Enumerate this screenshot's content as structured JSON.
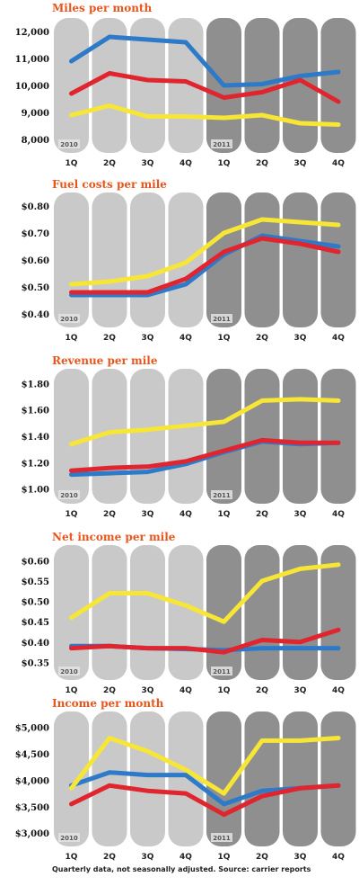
{
  "footnote": "Quarterly data, not seasonally adjusted. Source: carrier reports",
  "colors": {
    "panel_light": "#c9c9c9",
    "panel_dark": "#8f8f8f",
    "title": "#e8561d",
    "blue": "#2d7ac9",
    "red": "#e0252f",
    "yellow": "#f7e636"
  },
  "chart_data": [
    {
      "type": "line",
      "title": "Miles per month",
      "categories": [
        "1Q",
        "2Q",
        "3Q",
        "4Q",
        "1Q",
        "2Q",
        "3Q",
        "4Q"
      ],
      "year_labels": [
        "2010",
        "2011"
      ],
      "yticks": [
        "12,000",
        "11,000",
        "10,000",
        "9,000",
        "8,000"
      ],
      "ylim": [
        7700,
        12300
      ],
      "series": [
        {
          "color": "blue",
          "values": [
            10900,
            11800,
            11700,
            11600,
            10000,
            10050,
            10350,
            10500
          ]
        },
        {
          "color": "red",
          "values": [
            9700,
            10450,
            10200,
            10150,
            9550,
            9750,
            10200,
            9400
          ]
        },
        {
          "color": "yellow",
          "values": [
            8900,
            9250,
            8850,
            8850,
            8800,
            8900,
            8600,
            8550
          ]
        }
      ]
    },
    {
      "type": "line",
      "title": "Fuel costs per mile",
      "categories": [
        "1Q",
        "2Q",
        "3Q",
        "4Q",
        "1Q",
        "2Q",
        "3Q",
        "4Q"
      ],
      "year_labels": [
        "2010",
        "2011"
      ],
      "yticks": [
        "$0.80",
        "$0.70",
        "$0.60",
        "$0.50",
        "$0.40"
      ],
      "ylim": [
        0.37,
        0.83
      ],
      "series": [
        {
          "color": "blue",
          "values": [
            0.47,
            0.47,
            0.47,
            0.51,
            0.62,
            0.69,
            0.67,
            0.65
          ]
        },
        {
          "color": "red",
          "values": [
            0.48,
            0.48,
            0.48,
            0.53,
            0.63,
            0.68,
            0.66,
            0.63
          ]
        },
        {
          "color": "yellow",
          "values": [
            0.51,
            0.52,
            0.54,
            0.59,
            0.7,
            0.75,
            0.74,
            0.73
          ]
        }
      ]
    },
    {
      "type": "line",
      "title": "Revenue per mile",
      "categories": [
        "1Q",
        "2Q",
        "3Q",
        "4Q",
        "1Q",
        "2Q",
        "3Q",
        "4Q"
      ],
      "year_labels": [
        "2010",
        "2011"
      ],
      "yticks": [
        "$1.80",
        "$1.60",
        "$1.40",
        "$1.20",
        "$1.00"
      ],
      "ylim": [
        0.93,
        1.87
      ],
      "series": [
        {
          "color": "blue",
          "values": [
            1.11,
            1.12,
            1.13,
            1.19,
            1.28,
            1.36,
            1.34,
            1.35
          ]
        },
        {
          "color": "red",
          "values": [
            1.14,
            1.16,
            1.17,
            1.21,
            1.29,
            1.37,
            1.35,
            1.35
          ]
        },
        {
          "color": "yellow",
          "values": [
            1.34,
            1.43,
            1.45,
            1.48,
            1.51,
            1.67,
            1.68,
            1.67
          ]
        }
      ]
    },
    {
      "type": "line",
      "title": "Net income per mile",
      "categories": [
        "1Q",
        "2Q",
        "3Q",
        "4Q",
        "1Q",
        "2Q",
        "3Q",
        "4Q"
      ],
      "year_labels": [
        "2010",
        "2011"
      ],
      "yticks": [
        "$0.60",
        "$0.55",
        "$0.50",
        "$0.45",
        "$0.40",
        "$0.35"
      ],
      "ylim": [
        0.32,
        0.625
      ],
      "series": [
        {
          "color": "blue",
          "values": [
            0.39,
            0.39,
            0.385,
            0.383,
            0.38,
            0.385,
            0.385,
            0.385
          ]
        },
        {
          "color": "red",
          "values": [
            0.385,
            0.39,
            0.385,
            0.385,
            0.375,
            0.405,
            0.4,
            0.43
          ]
        },
        {
          "color": "yellow",
          "values": [
            0.46,
            0.52,
            0.52,
            0.49,
            0.45,
            0.55,
            0.58,
            0.59
          ]
        }
      ]
    },
    {
      "type": "line",
      "title": "Income per month",
      "categories": [
        "1Q",
        "2Q",
        "3Q",
        "4Q",
        "1Q",
        "2Q",
        "3Q",
        "4Q"
      ],
      "year_labels": [
        "2010",
        "2011"
      ],
      "yticks": [
        "$5,000",
        "$4,500",
        "$4,000",
        "$3,500",
        "$3,000"
      ],
      "ylim": [
        2850,
        5200
      ],
      "series": [
        {
          "color": "blue",
          "values": [
            3900,
            4150,
            4100,
            4100,
            3550,
            3800,
            3850,
            3900
          ]
        },
        {
          "color": "red",
          "values": [
            3550,
            3900,
            3800,
            3750,
            3350,
            3700,
            3850,
            3900
          ]
        },
        {
          "color": "yellow",
          "values": [
            3850,
            4800,
            4550,
            4200,
            3750,
            4750,
            4750,
            4800
          ]
        }
      ]
    }
  ]
}
